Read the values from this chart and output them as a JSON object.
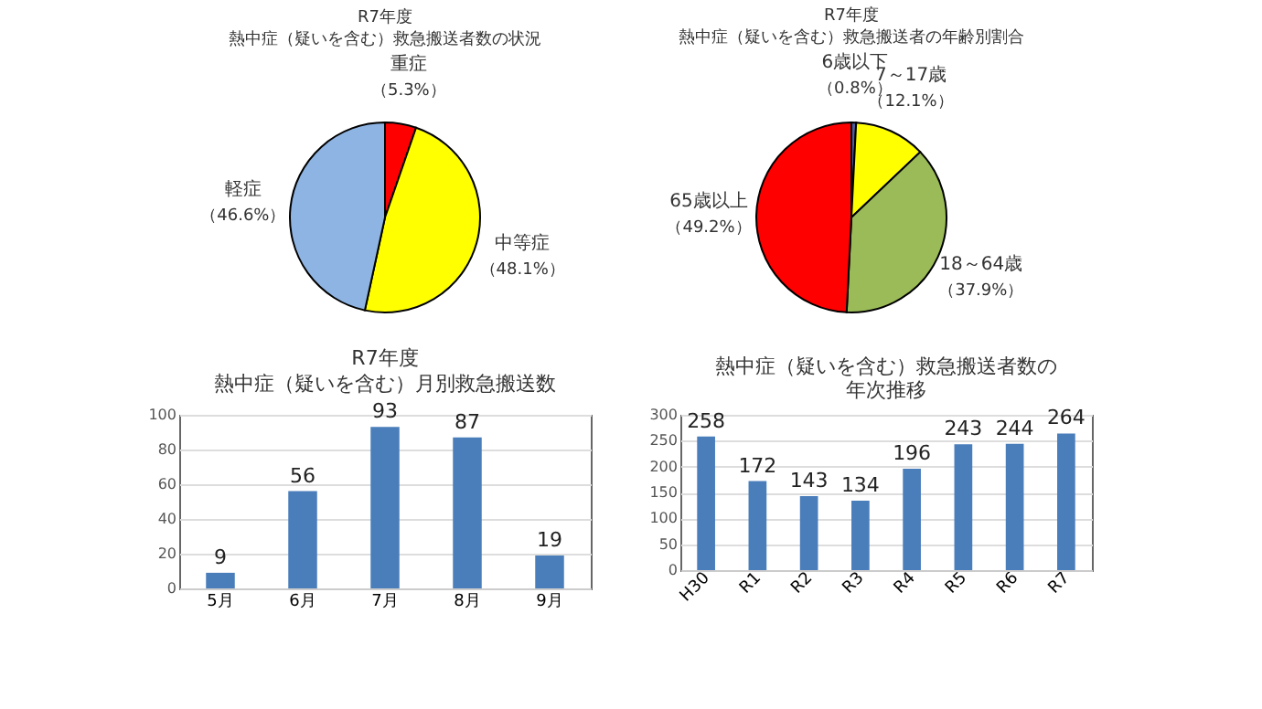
{
  "chart_data": [
    {
      "type": "pie",
      "title": "R7年度",
      "subtitle": "熱中症（疑いを含む）救急搬送者数の状況",
      "categories": [
        "重症",
        "中等症",
        "軽症"
      ],
      "values": [
        5.3,
        48.1,
        46.6
      ],
      "colors": [
        "#ff0000",
        "#ffff00",
        "#8eb4e3"
      ],
      "value_labels": [
        "（5.3%）",
        "（48.1%）",
        "（46.6%）"
      ]
    },
    {
      "type": "pie",
      "title": "R7年度",
      "subtitle": "熱中症（疑いを含む）救急搬送者の年齢別割合",
      "categories": [
        "6歳以下",
        "7～17歳",
        "18～64歳",
        "65歳以上"
      ],
      "values": [
        0.8,
        12.1,
        37.9,
        49.2
      ],
      "colors": [
        "#4f5fa0",
        "#ffff00",
        "#9bbb59",
        "#ff0000"
      ],
      "value_labels": [
        "（0.8%）",
        "（12.1%）",
        "（37.9%）",
        "（49.2%）"
      ]
    },
    {
      "type": "bar",
      "title": "R7年度",
      "subtitle": "熱中症（疑いを含む）月別救急搬送数",
      "categories": [
        "5月",
        "6月",
        "7月",
        "8月",
        "9月"
      ],
      "values": [
        9,
        56,
        93,
        87,
        19
      ],
      "color": "#4a7ebb",
      "ylim": [
        0,
        100
      ],
      "yticks": [
        0,
        20,
        40,
        60,
        80,
        100
      ],
      "grid": "y",
      "data_labels": true
    },
    {
      "type": "bar",
      "title": "熱中症（疑いを含む）救急搬送者数の年次推移",
      "categories": [
        "H30",
        "R1",
        "R2",
        "R3",
        "R4",
        "R5",
        "R6",
        "R7"
      ],
      "values": [
        258,
        172,
        143,
        134,
        196,
        243,
        244,
        264
      ],
      "color": "#4a7ebb",
      "ylim": [
        0,
        300
      ],
      "yticks": [
        0,
        50,
        100,
        150,
        200,
        250,
        300
      ],
      "grid": "y",
      "data_labels": true
    }
  ]
}
